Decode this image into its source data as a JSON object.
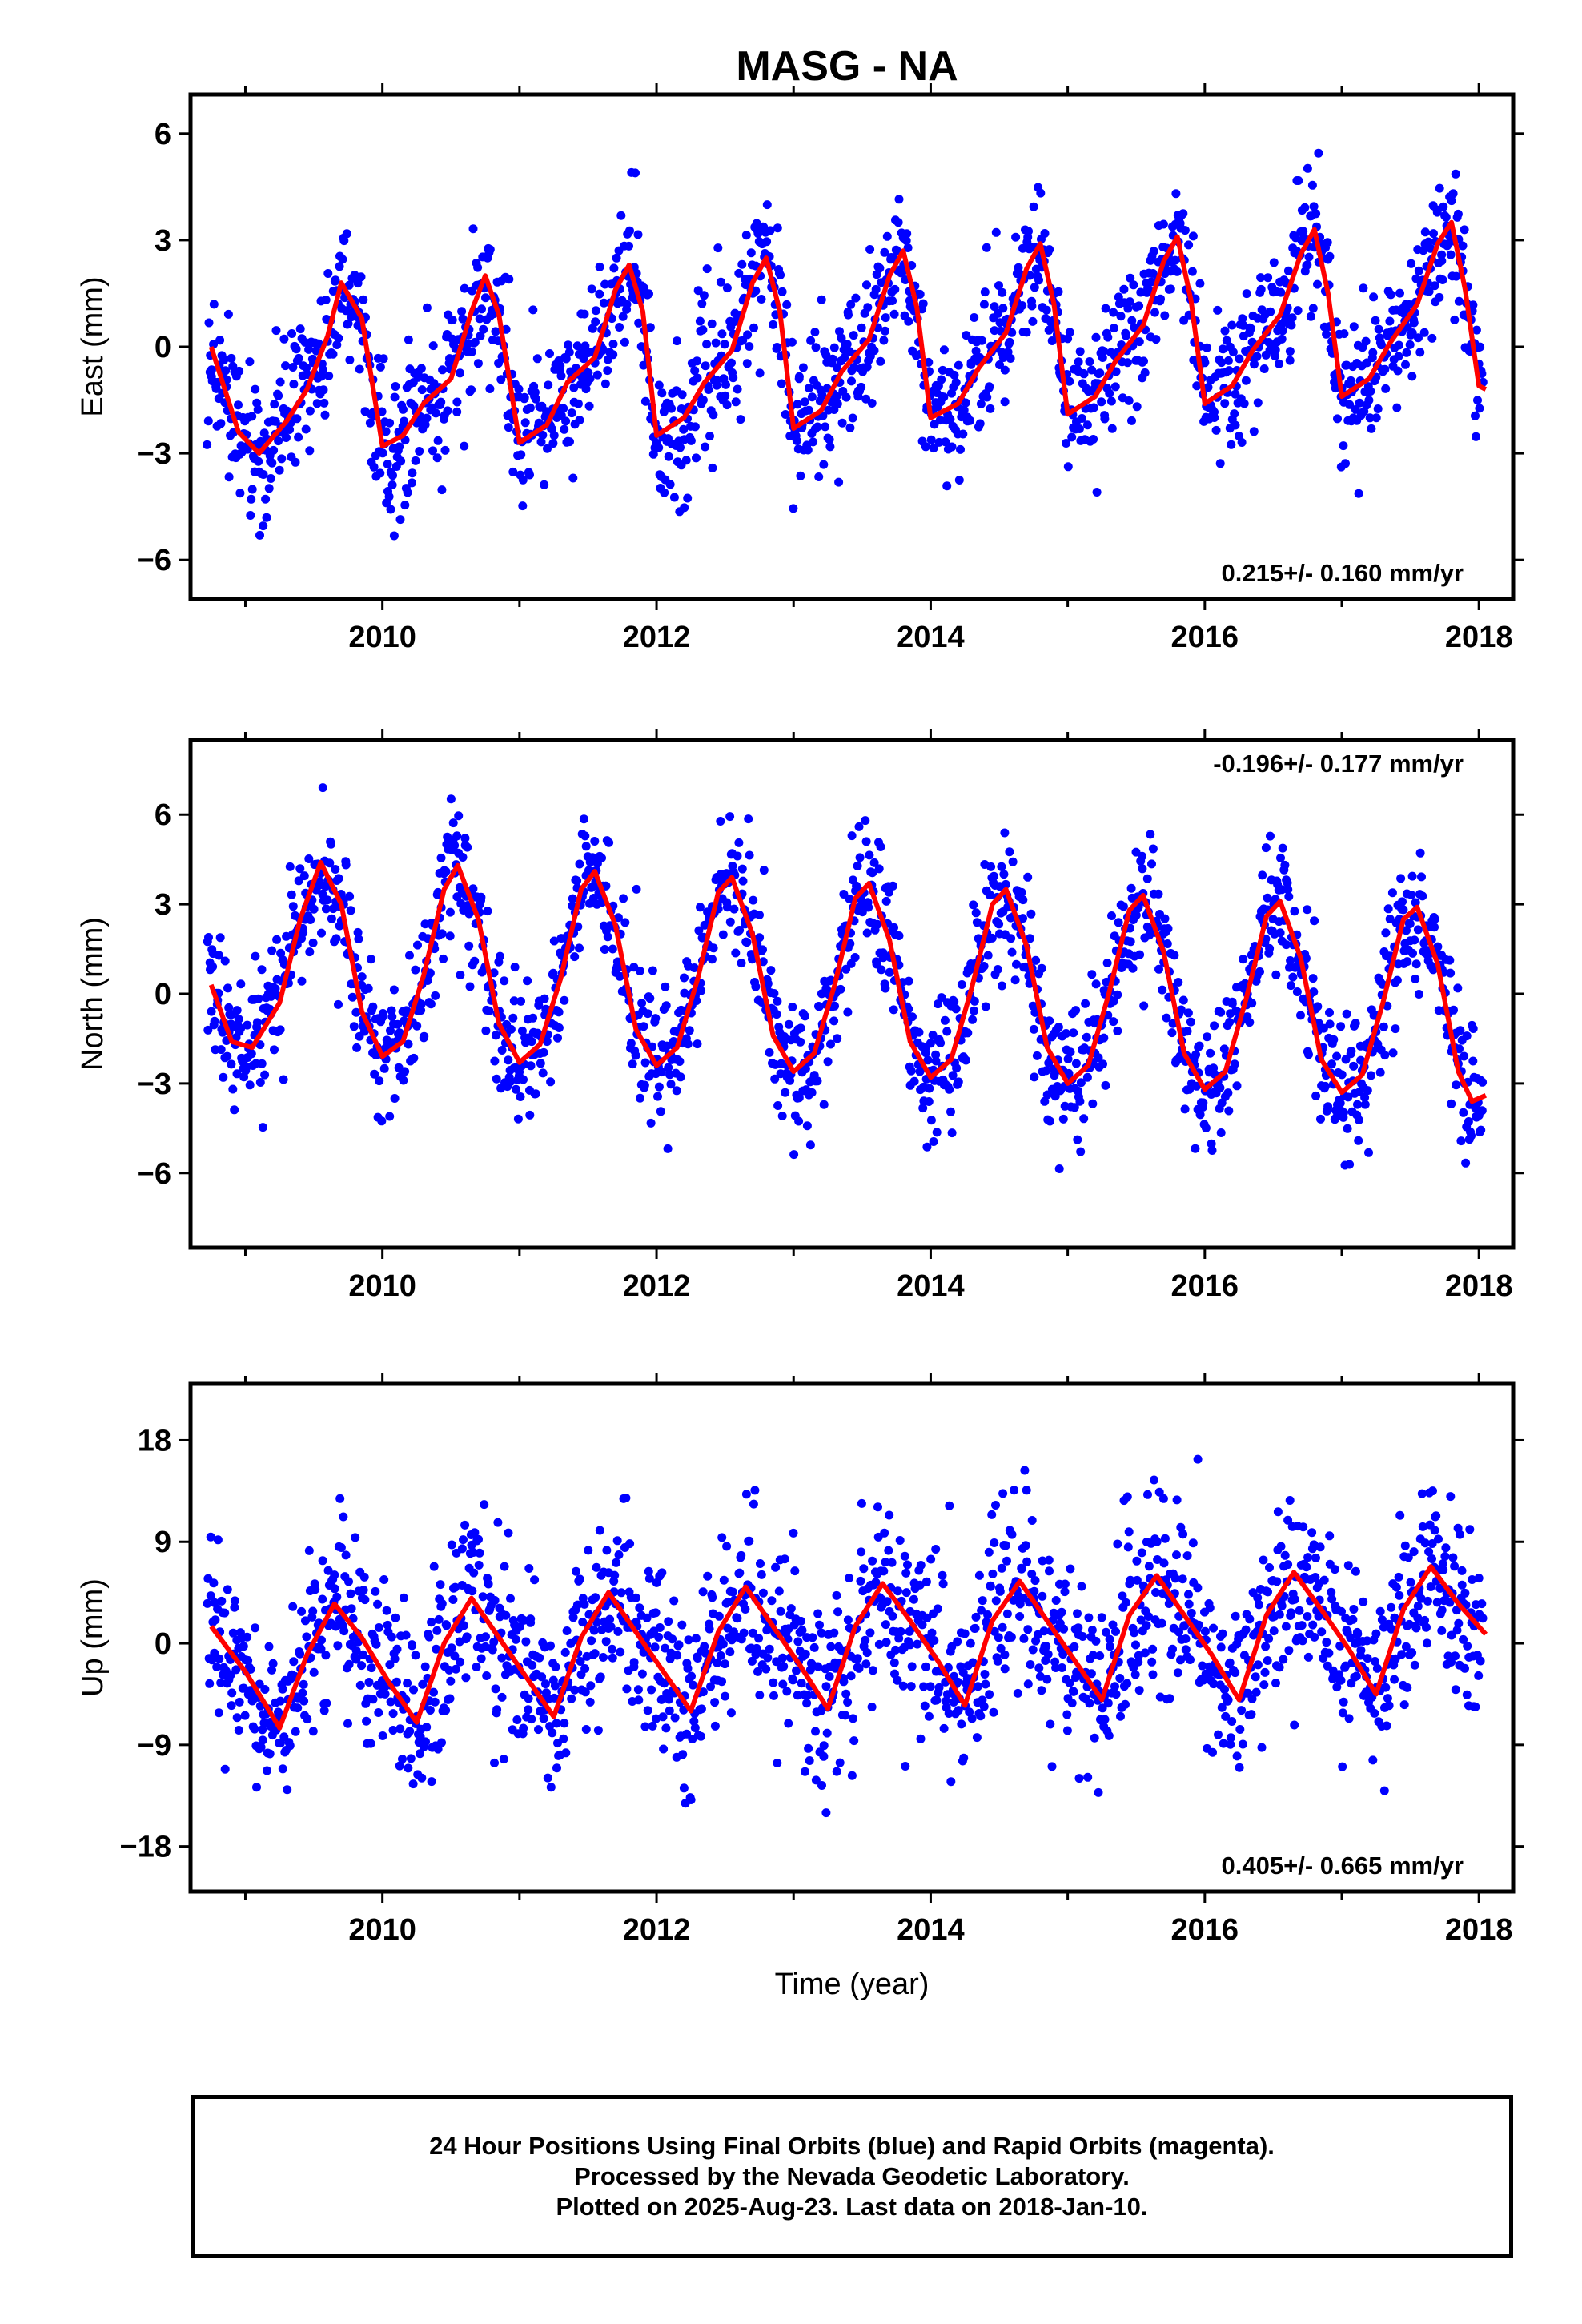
{
  "title": "MASG - NA",
  "footer": {
    "line1": "24 Hour Positions Using Final Orbits (blue) and Rapid Orbits (magenta).",
    "line2": "Processed by the Nevada Geodetic Laboratory.",
    "line3": "Plotted on 2025-Aug-23. Last data on 2018-Jan-10."
  },
  "colors": {
    "points": "#0000ff",
    "fit": "#ff0000",
    "frame": "#000000"
  },
  "chart_data": [
    {
      "type": "scatter",
      "component": "East",
      "ylabel": "East (mm)",
      "xlabel": "",
      "xlim": [
        2008.6,
        2018.25
      ],
      "ylim": [
        -7.1,
        7.1
      ],
      "x_ticks": [
        2010,
        2012,
        2014,
        2016,
        2018
      ],
      "y_ticks": [
        -6,
        -3,
        0,
        3,
        6
      ],
      "y_tick_labels": [
        "−6",
        "−3",
        "0",
        "3",
        "6"
      ],
      "rate_label": "0.215+/- 0.160 mm/yr",
      "rate_position": "bottom-right",
      "fit_points": [
        [
          2008.75,
          0.0
        ],
        [
          2008.95,
          -2.4
        ],
        [
          2009.1,
          -3.0
        ],
        [
          2009.3,
          -2.1
        ],
        [
          2009.45,
          -1.2
        ],
        [
          2009.6,
          0.3
        ],
        [
          2009.7,
          1.8
        ],
        [
          2009.85,
          0.8
        ],
        [
          2010.0,
          -2.8
        ],
        [
          2010.15,
          -2.5
        ],
        [
          2010.3,
          -1.6
        ],
        [
          2010.5,
          -0.9
        ],
        [
          2010.65,
          1.0
        ],
        [
          2010.75,
          2.0
        ],
        [
          2010.85,
          0.9
        ],
        [
          2011.0,
          -2.7
        ],
        [
          2011.2,
          -2.2
        ],
        [
          2011.35,
          -1.0
        ],
        [
          2011.55,
          -0.3
        ],
        [
          2011.7,
          1.6
        ],
        [
          2011.8,
          2.3
        ],
        [
          2011.9,
          1.0
        ],
        [
          2012.0,
          -2.5
        ],
        [
          2012.2,
          -2.0
        ],
        [
          2012.35,
          -1.0
        ],
        [
          2012.55,
          -0.1
        ],
        [
          2012.7,
          1.8
        ],
        [
          2012.8,
          2.5
        ],
        [
          2012.9,
          1.0
        ],
        [
          2013.0,
          -2.3
        ],
        [
          2013.2,
          -1.8
        ],
        [
          2013.35,
          -0.7
        ],
        [
          2013.55,
          0.2
        ],
        [
          2013.7,
          2.0
        ],
        [
          2013.8,
          2.7
        ],
        [
          2013.9,
          1.1
        ],
        [
          2014.0,
          -2.0
        ],
        [
          2014.2,
          -1.6
        ],
        [
          2014.35,
          -0.6
        ],
        [
          2014.55,
          0.4
        ],
        [
          2014.7,
          2.2
        ],
        [
          2014.8,
          2.9
        ],
        [
          2014.9,
          1.2
        ],
        [
          2015.0,
          -1.9
        ],
        [
          2015.2,
          -1.4
        ],
        [
          2015.35,
          -0.4
        ],
        [
          2015.55,
          0.6
        ],
        [
          2015.7,
          2.4
        ],
        [
          2015.8,
          3.1
        ],
        [
          2015.9,
          1.3
        ],
        [
          2016.0,
          -1.6
        ],
        [
          2016.2,
          -1.1
        ],
        [
          2016.35,
          -0.1
        ],
        [
          2016.55,
          0.9
        ],
        [
          2016.7,
          2.6
        ],
        [
          2016.8,
          3.3
        ],
        [
          2016.9,
          1.5
        ],
        [
          2017.0,
          -1.4
        ],
        [
          2017.2,
          -0.9
        ],
        [
          2017.35,
          0.1
        ],
        [
          2017.55,
          1.2
        ],
        [
          2017.7,
          2.9
        ],
        [
          2017.8,
          3.5
        ],
        [
          2017.9,
          1.6
        ],
        [
          2018.0,
          -1.1
        ],
        [
          2018.05,
          -1.2
        ]
      ],
      "noise_sd": 1.0
    },
    {
      "type": "scatter",
      "component": "North",
      "ylabel": "North (mm)",
      "xlabel": "",
      "xlim": [
        2008.6,
        2018.25
      ],
      "ylim": [
        -8.5,
        8.5
      ],
      "x_ticks": [
        2010,
        2012,
        2014,
        2016,
        2018
      ],
      "y_ticks": [
        -6,
        -3,
        0,
        3,
        6
      ],
      "y_tick_labels": [
        "−6",
        "−3",
        "0",
        "3",
        "6"
      ],
      "rate_label": "-0.196+/- 0.177 mm/yr",
      "rate_position": "top-right",
      "fit_points": [
        [
          2008.75,
          0.3
        ],
        [
          2008.9,
          -1.6
        ],
        [
          2009.05,
          -1.8
        ],
        [
          2009.25,
          -0.3
        ],
        [
          2009.4,
          2.5
        ],
        [
          2009.55,
          4.4
        ],
        [
          2009.7,
          3.0
        ],
        [
          2009.85,
          -0.6
        ],
        [
          2010.0,
          -2.1
        ],
        [
          2010.15,
          -1.6
        ],
        [
          2010.3,
          0.6
        ],
        [
          2010.45,
          3.5
        ],
        [
          2010.55,
          4.3
        ],
        [
          2010.7,
          2.5
        ],
        [
          2010.85,
          -1.0
        ],
        [
          2011.0,
          -2.3
        ],
        [
          2011.15,
          -1.7
        ],
        [
          2011.3,
          0.5
        ],
        [
          2011.45,
          3.5
        ],
        [
          2011.55,
          4.1
        ],
        [
          2011.7,
          2.3
        ],
        [
          2011.85,
          -1.2
        ],
        [
          2012.0,
          -2.4
        ],
        [
          2012.15,
          -1.8
        ],
        [
          2012.3,
          0.5
        ],
        [
          2012.45,
          3.4
        ],
        [
          2012.55,
          3.9
        ],
        [
          2012.7,
          2.0
        ],
        [
          2012.85,
          -1.4
        ],
        [
          2013.0,
          -2.6
        ],
        [
          2013.15,
          -2.0
        ],
        [
          2013.3,
          0.3
        ],
        [
          2013.45,
          3.2
        ],
        [
          2013.55,
          3.7
        ],
        [
          2013.7,
          1.8
        ],
        [
          2013.85,
          -1.6
        ],
        [
          2014.0,
          -2.8
        ],
        [
          2014.15,
          -2.2
        ],
        [
          2014.3,
          0.2
        ],
        [
          2014.45,
          3.0
        ],
        [
          2014.55,
          3.5
        ],
        [
          2014.7,
          1.6
        ],
        [
          2014.85,
          -1.8
        ],
        [
          2015.0,
          -3.0
        ],
        [
          2015.15,
          -2.4
        ],
        [
          2015.3,
          0.0
        ],
        [
          2015.45,
          2.8
        ],
        [
          2015.55,
          3.3
        ],
        [
          2015.7,
          1.4
        ],
        [
          2015.85,
          -2.0
        ],
        [
          2016.0,
          -3.2
        ],
        [
          2016.15,
          -2.6
        ],
        [
          2016.3,
          -0.2
        ],
        [
          2016.45,
          2.6
        ],
        [
          2016.55,
          3.1
        ],
        [
          2016.7,
          1.2
        ],
        [
          2016.85,
          -2.2
        ],
        [
          2017.0,
          -3.3
        ],
        [
          2017.15,
          -2.7
        ],
        [
          2017.3,
          -0.3
        ],
        [
          2017.45,
          2.5
        ],
        [
          2017.55,
          2.9
        ],
        [
          2017.7,
          1.0
        ],
        [
          2017.85,
          -2.6
        ],
        [
          2017.95,
          -3.6
        ],
        [
          2018.05,
          -3.4
        ]
      ],
      "noise_sd": 1.1
    },
    {
      "type": "scatter",
      "component": "Up",
      "ylabel": "Up (mm)",
      "xlabel": "Time (year)",
      "xlim": [
        2008.6,
        2018.25
      ],
      "ylim": [
        -22,
        23
      ],
      "x_ticks": [
        2010,
        2012,
        2014,
        2016,
        2018
      ],
      "y_ticks": [
        -18,
        -9,
        0,
        9,
        18
      ],
      "y_tick_labels": [
        "−18",
        "−9",
        "0",
        "9",
        "18"
      ],
      "rate_label": "0.405+/- 0.665 mm/yr",
      "rate_position": "bottom-right",
      "fit_points": [
        [
          2008.75,
          1.5
        ],
        [
          2009.0,
          -2.5
        ],
        [
          2009.25,
          -7.5
        ],
        [
          2009.45,
          -1.0
        ],
        [
          2009.65,
          3.5
        ],
        [
          2009.85,
          0.5
        ],
        [
          2010.05,
          -3.5
        ],
        [
          2010.25,
          -7.0
        ],
        [
          2010.45,
          0.0
        ],
        [
          2010.65,
          4.0
        ],
        [
          2010.85,
          0.5
        ],
        [
          2011.05,
          -3.0
        ],
        [
          2011.25,
          -6.5
        ],
        [
          2011.45,
          0.5
        ],
        [
          2011.65,
          4.5
        ],
        [
          2011.85,
          1.0
        ],
        [
          2012.05,
          -2.5
        ],
        [
          2012.25,
          -6.0
        ],
        [
          2012.45,
          1.0
        ],
        [
          2012.65,
          5.0
        ],
        [
          2012.85,
          1.5
        ],
        [
          2013.05,
          -2.0
        ],
        [
          2013.25,
          -5.8
        ],
        [
          2013.45,
          1.5
        ],
        [
          2013.65,
          5.3
        ],
        [
          2013.85,
          2.0
        ],
        [
          2014.05,
          -1.5
        ],
        [
          2014.25,
          -5.5
        ],
        [
          2014.45,
          2.0
        ],
        [
          2014.65,
          5.5
        ],
        [
          2014.85,
          2.0
        ],
        [
          2015.05,
          -1.5
        ],
        [
          2015.25,
          -5.0
        ],
        [
          2015.45,
          2.5
        ],
        [
          2015.65,
          6.0
        ],
        [
          2015.85,
          2.5
        ],
        [
          2016.05,
          -1.0
        ],
        [
          2016.25,
          -5.0
        ],
        [
          2016.45,
          2.5
        ],
        [
          2016.65,
          6.3
        ],
        [
          2016.85,
          3.0
        ],
        [
          2017.05,
          -0.5
        ],
        [
          2017.25,
          -4.5
        ],
        [
          2017.45,
          3.0
        ],
        [
          2017.65,
          6.8
        ],
        [
          2017.85,
          3.5
        ],
        [
          2018.05,
          0.8
        ]
      ],
      "noise_sd": 4.0
    }
  ]
}
